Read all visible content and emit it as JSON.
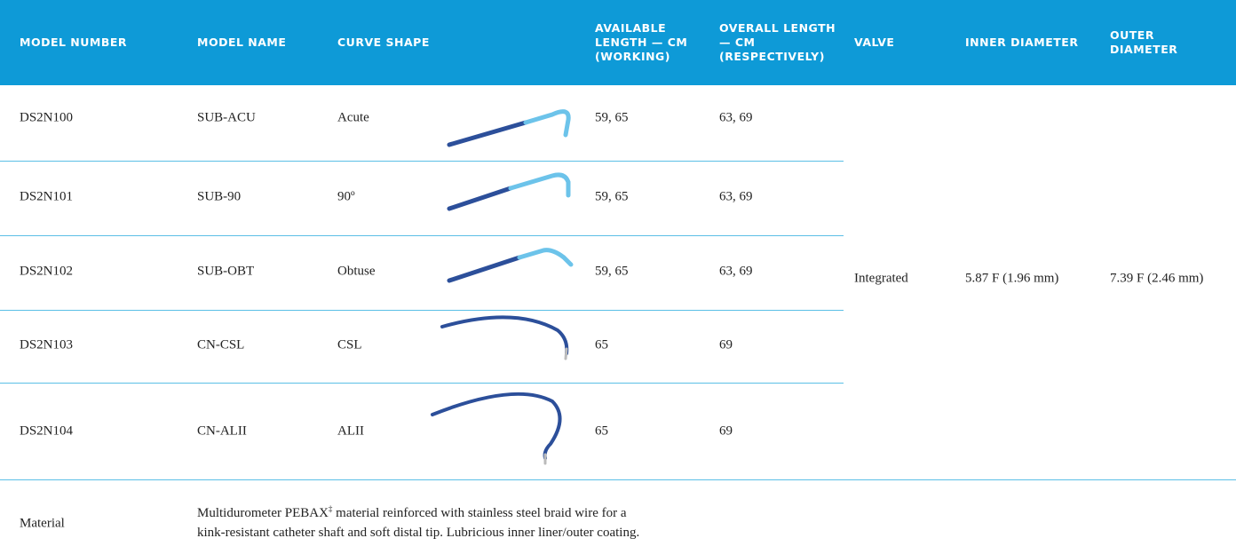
{
  "table": {
    "headers": [
      "MODEL NUMBER",
      "MODEL NAME",
      "CURVE SHAPE",
      "AVAILABLE LENGTH — CM (WORKING)",
      "OVERALL LENGTH — CM (RESPECTIVELY)",
      "VALVE",
      "INNER DIAMETER",
      "OUTER DIAMETER"
    ],
    "rows": [
      [
        "DS2N100",
        "SUB-ACU",
        "Acute",
        "59, 65",
        "63, 69"
      ],
      [
        "DS2N101",
        "SUB-90",
        "90º",
        "59, 65",
        "63, 69"
      ],
      [
        "DS2N102",
        "SUB-OBT",
        "Obtuse",
        "59, 65",
        "63, 69"
      ],
      [
        "DS2N103",
        "CN-CSL",
        "CSL",
        "65",
        "69"
      ],
      [
        "DS2N104",
        "CN-ALII",
        "ALII",
        "65",
        "69"
      ]
    ],
    "shared": {
      "valve": "Integrated",
      "inner_diameter": "5.87 F (1.96 mm)",
      "outer_diameter": "7.39 F (2.46 mm)"
    }
  },
  "material": {
    "label": "Material",
    "description": [
      "Multidurometer PEBAX",
      "‡",
      " material reinforced with stainless steel braid wire for a",
      "kink-resistant catheter shaft and soft distal tip. Lubricious inner liner/outer coating."
    ]
  }
}
